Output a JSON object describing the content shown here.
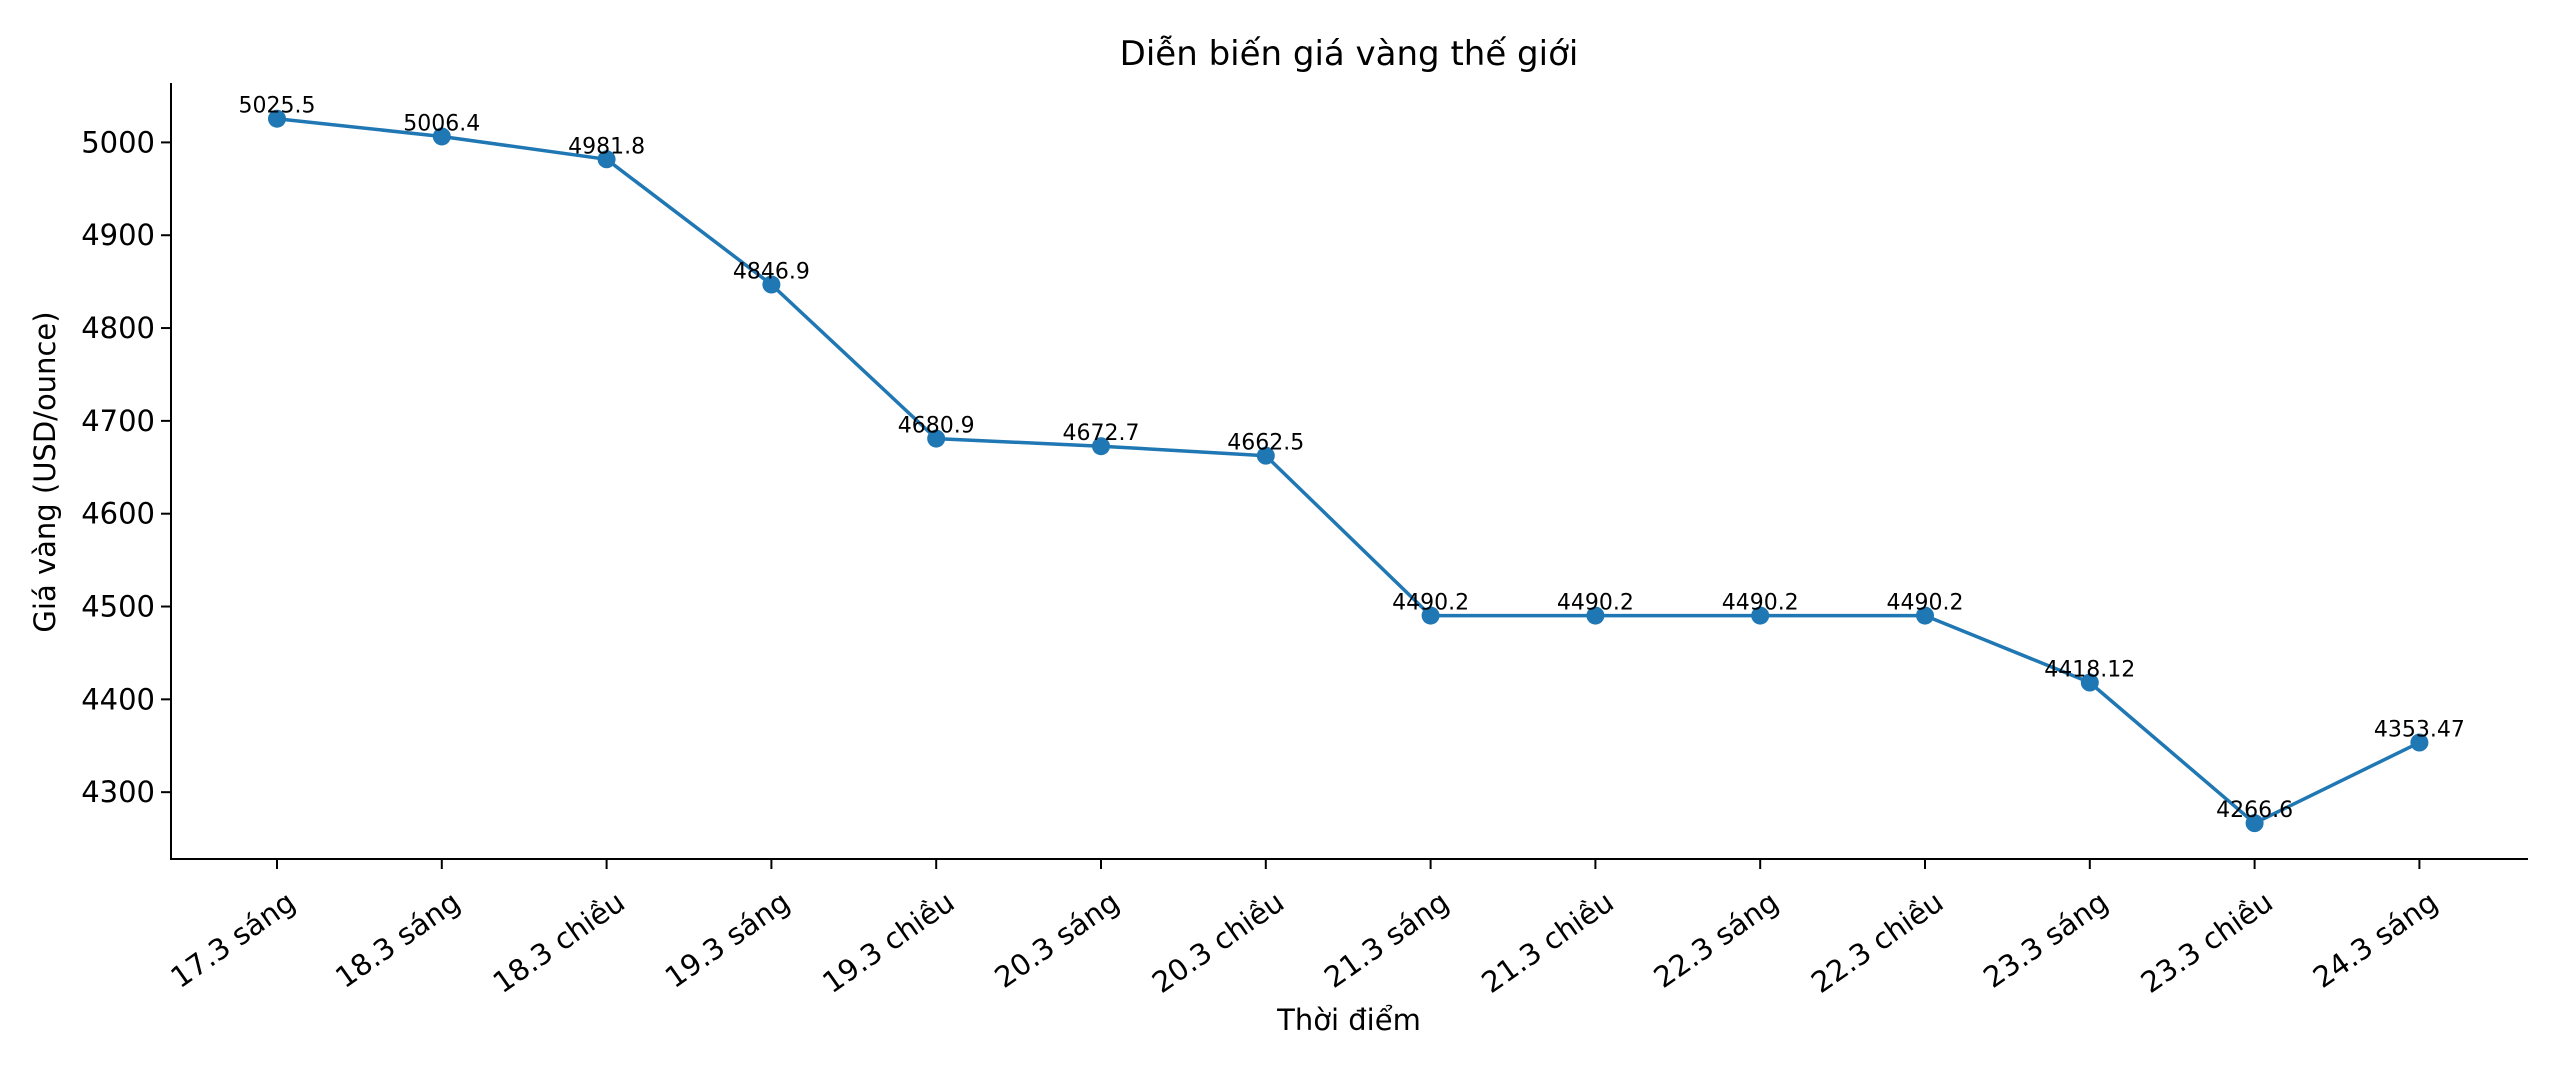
{
  "chart_data": {
    "type": "line",
    "title": "Diễn biến giá vàng thế giới",
    "xlabel": "Thời điểm",
    "ylabel": "Giá vàng (USD/ounce)",
    "categories": [
      "17.3 sáng",
      "18.3 sáng",
      "18.3 chiều",
      "19.3 sáng",
      "19.3 chiều",
      "20.3 sáng",
      "20.3 chiều",
      "21.3 sáng",
      "21.3 chiều",
      "22.3 sáng",
      "22.3 chiều",
      "23.3 sáng",
      "23.3 chiều",
      "24.3 sáng"
    ],
    "series": [
      {
        "values": [
          5025.5,
          5006.4,
          4981.8,
          4846.9,
          4680.9,
          4672.7,
          4662.5,
          4490.2,
          4490.2,
          4490.2,
          4490.2,
          4418.12,
          4266.6,
          4353.47
        ],
        "labels": [
          "5025.5",
          "5006.4",
          "4981.8",
          "4846.9",
          "4680.9",
          "4672.7",
          "4662.5",
          "4490.2",
          "4490.2",
          "4490.2",
          "4490.2",
          "4418.12",
          "4266.6",
          "4353.47"
        ],
        "color": "#1f77b4"
      }
    ],
    "yticks": [
      4300,
      4400,
      4500,
      4600,
      4700,
      4800,
      4900,
      5000
    ],
    "ylim": [
      4228,
      5064
    ],
    "grid": false,
    "legend": "none",
    "markers": true
  }
}
